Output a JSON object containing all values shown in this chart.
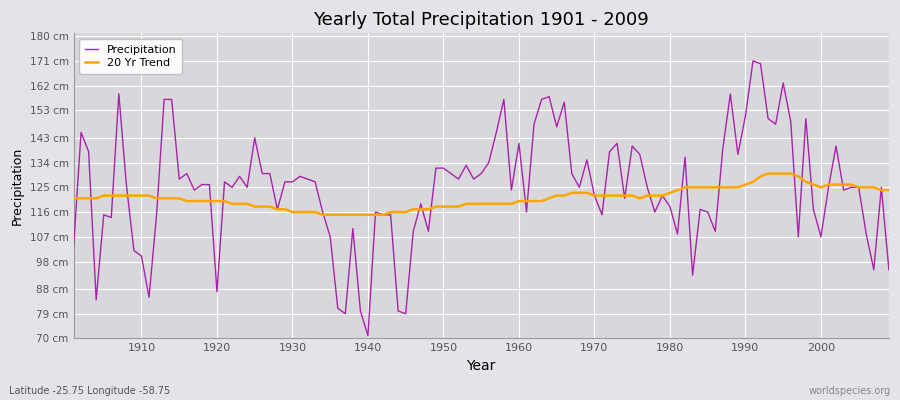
{
  "title": "Yearly Total Precipitation 1901 - 2009",
  "xlabel": "Year",
  "ylabel": "Precipitation",
  "subtitle": "Latitude -25.75 Longitude -58.75",
  "watermark": "worldspecies.org",
  "legend_labels": [
    "Precipitation",
    "20 Yr Trend"
  ],
  "precip_color": "#AA22AA",
  "trend_color": "#FFA500",
  "bg_color": "#E4E4E8",
  "plot_bg_color": "#D8D8DC",
  "ylim": [
    70,
    181
  ],
  "yticks": [
    70,
    79,
    88,
    98,
    107,
    116,
    125,
    134,
    143,
    153,
    162,
    171,
    180
  ],
  "ytick_labels": [
    "70 cm",
    "79 cm",
    "88 cm",
    "98 cm",
    "107 cm",
    "116 cm",
    "125 cm",
    "134 cm",
    "143 cm",
    "153 cm",
    "162 cm",
    "171 cm",
    "180 cm"
  ],
  "years": [
    1901,
    1902,
    1903,
    1904,
    1905,
    1906,
    1907,
    1908,
    1909,
    1910,
    1911,
    1912,
    1913,
    1914,
    1915,
    1916,
    1917,
    1918,
    1919,
    1920,
    1921,
    1922,
    1923,
    1924,
    1925,
    1926,
    1927,
    1928,
    1929,
    1930,
    1931,
    1932,
    1933,
    1934,
    1935,
    1936,
    1937,
    1938,
    1939,
    1940,
    1941,
    1942,
    1943,
    1944,
    1945,
    1946,
    1947,
    1948,
    1949,
    1950,
    1951,
    1952,
    1953,
    1954,
    1955,
    1956,
    1957,
    1958,
    1959,
    1960,
    1961,
    1962,
    1963,
    1964,
    1965,
    1966,
    1967,
    1968,
    1969,
    1970,
    1971,
    1972,
    1973,
    1974,
    1975,
    1976,
    1977,
    1978,
    1979,
    1980,
    1981,
    1982,
    1983,
    1984,
    1985,
    1986,
    1987,
    1988,
    1989,
    1990,
    1991,
    1992,
    1993,
    1994,
    1995,
    1996,
    1997,
    1998,
    1999,
    2000,
    2001,
    2002,
    2003,
    2004,
    2005,
    2006,
    2007,
    2008,
    2009
  ],
  "precip": [
    103,
    145,
    138,
    84,
    115,
    114,
    159,
    126,
    102,
    100,
    85,
    115,
    157,
    157,
    128,
    130,
    124,
    126,
    126,
    87,
    127,
    125,
    129,
    125,
    143,
    130,
    130,
    117,
    127,
    127,
    129,
    128,
    127,
    116,
    107,
    81,
    79,
    110,
    80,
    71,
    116,
    115,
    115,
    80,
    79,
    109,
    119,
    109,
    132,
    132,
    130,
    128,
    133,
    128,
    130,
    134,
    145,
    157,
    124,
    141,
    116,
    148,
    157,
    158,
    147,
    156,
    130,
    125,
    135,
    122,
    115,
    138,
    141,
    121,
    140,
    137,
    125,
    116,
    122,
    118,
    108,
    136,
    93,
    117,
    116,
    109,
    139,
    159,
    137,
    151,
    171,
    170,
    150,
    148,
    163,
    149,
    107,
    150,
    117,
    107,
    125,
    140,
    124,
    125,
    125,
    108,
    95,
    125,
    95
  ],
  "trend": [
    121,
    121,
    121,
    121,
    122,
    122,
    122,
    122,
    122,
    122,
    122,
    121,
    121,
    121,
    121,
    120,
    120,
    120,
    120,
    120,
    120,
    119,
    119,
    119,
    118,
    118,
    118,
    117,
    117,
    116,
    116,
    116,
    116,
    115,
    115,
    115,
    115,
    115,
    115,
    115,
    115,
    115,
    116,
    116,
    116,
    117,
    117,
    117,
    118,
    118,
    118,
    118,
    119,
    119,
    119,
    119,
    119,
    119,
    119,
    120,
    120,
    120,
    120,
    121,
    122,
    122,
    123,
    123,
    123,
    122,
    122,
    122,
    122,
    122,
    122,
    121,
    122,
    122,
    122,
    123,
    124,
    125,
    125,
    125,
    125,
    125,
    125,
    125,
    125,
    126,
    127,
    129,
    130,
    130,
    130,
    130,
    129,
    127,
    126,
    125,
    126,
    126,
    126,
    126,
    125,
    125,
    125,
    124,
    124
  ]
}
